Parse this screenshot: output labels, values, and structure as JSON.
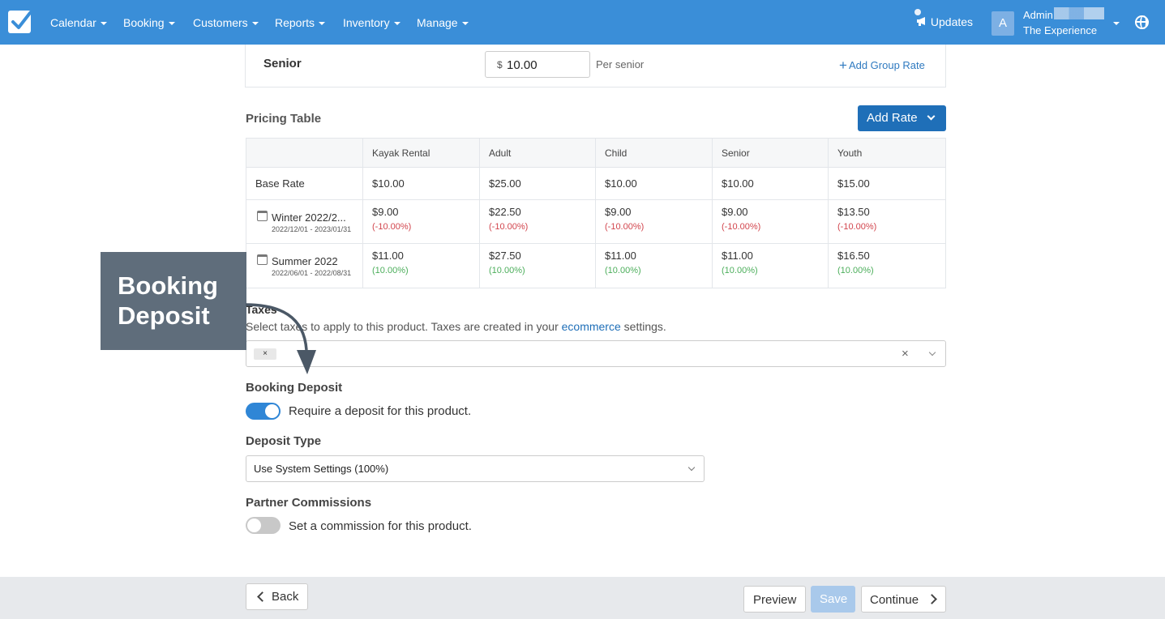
{
  "nav": {
    "items": [
      "Calendar",
      "Booking",
      "Customers",
      "Reports",
      "Inventory",
      "Manage"
    ],
    "updates": "Updates",
    "avatar_letter": "A",
    "admin_name": "Admin",
    "company": "The Experience"
  },
  "senior_rate": {
    "label": "Senior",
    "currency": "$",
    "value": "10.00",
    "unit": "Per senior",
    "add_group_rate": "Add Group Rate"
  },
  "pricing": {
    "title": "Pricing Table",
    "add_rate": "Add Rate",
    "columns": [
      "Kayak Rental",
      "Adult",
      "Child",
      "Senior",
      "Youth"
    ],
    "rows": [
      {
        "label": "Base Rate",
        "dates": "",
        "values": [
          "$10.00",
          "$25.00",
          "$10.00",
          "$10.00",
          "$15.00"
        ],
        "pcts": []
      },
      {
        "label": "Winter 2022/2...",
        "dates": "2022/12/01 - 2023/01/31",
        "values": [
          "$9.00",
          "$22.50",
          "$9.00",
          "$9.00",
          "$13.50"
        ],
        "pcts": [
          "(-10.00%)",
          "(-10.00%)",
          "(-10.00%)",
          "(-10.00%)",
          "(-10.00%)"
        ]
      },
      {
        "label": "Summer 2022",
        "dates": "2022/06/01 - 2022/08/31",
        "values": [
          "$11.00",
          "$27.50",
          "$11.00",
          "$11.00",
          "$16.50"
        ],
        "pcts": [
          "(10.00%)",
          "(10.00%)",
          "(10.00%)",
          "(10.00%)",
          "(10.00%)"
        ]
      }
    ]
  },
  "callout": {
    "line1": "Booking",
    "line2": "Deposit"
  },
  "taxes": {
    "title": "Taxes",
    "desc_before": "Select taxes to apply to this product. Taxes are created in your ",
    "desc_link": "ecommerce",
    "desc_after": " settings.",
    "chip": "×",
    "clear": "×"
  },
  "deposit": {
    "title": "Booking Deposit",
    "toggle_label": "Require a deposit for this product.",
    "enabled": true,
    "type_title": "Deposit Type",
    "type_value": "Use System Settings (100%)"
  },
  "commissions": {
    "title": "Partner Commissions",
    "toggle_label": "Set a commission for this product.",
    "enabled": false
  },
  "footer": {
    "back": "Back",
    "preview": "Preview",
    "save": "Save",
    "continue": "Continue"
  }
}
